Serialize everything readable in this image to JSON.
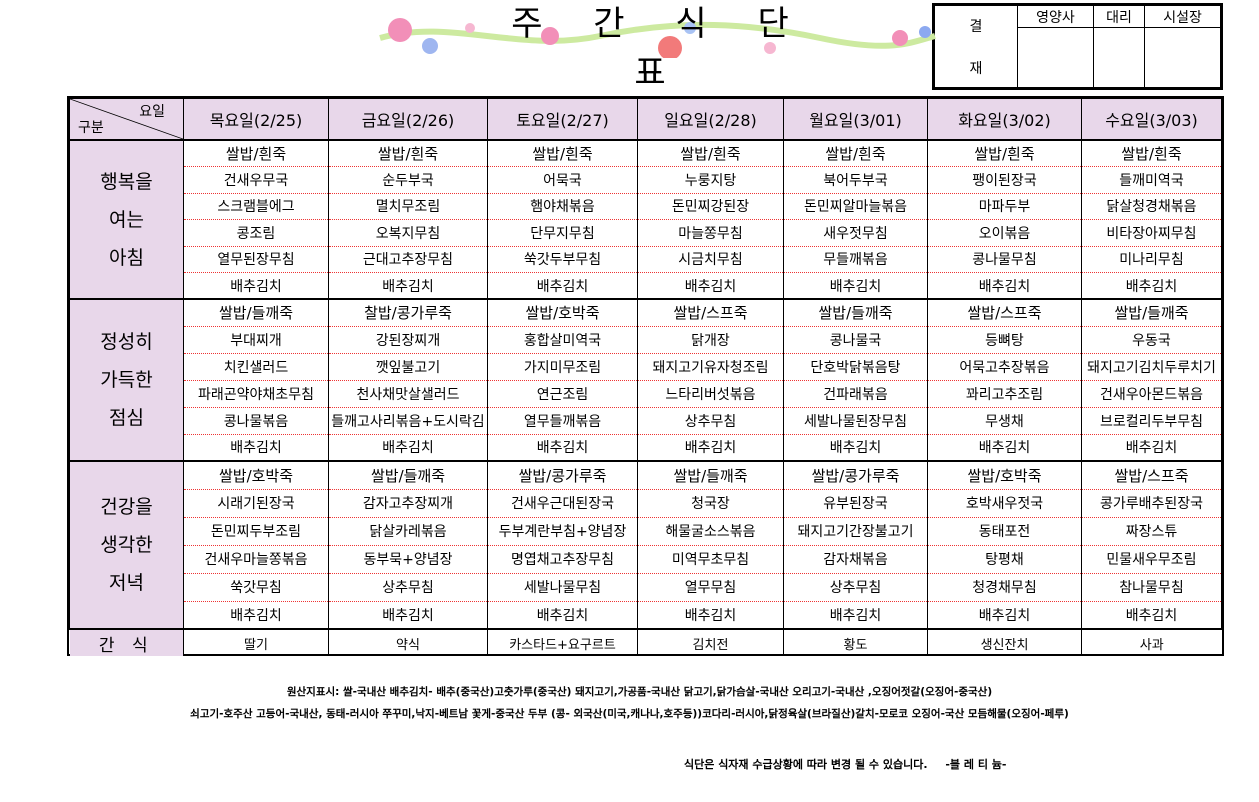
{
  "title": "주 간 식 단 표",
  "approval": {
    "label_top": "결",
    "label_bottom": "재",
    "columns": [
      "영양사",
      "대리",
      "시설장"
    ]
  },
  "header": {
    "corner_top": "요일",
    "corner_bottom": "구분",
    "days": [
      "목요일(2/25)",
      "금요일(2/26)",
      "토요일(2/27)",
      "일요일(2/28)",
      "월요일(3/01)",
      "화요일(3/02)",
      "수요일(3/03)"
    ]
  },
  "meals": [
    {
      "label": [
        "행복을",
        "여는",
        "아침"
      ],
      "rows": [
        [
          "쌀밥/흰죽",
          "쌀밥/흰죽",
          "쌀밥/흰죽",
          "쌀밥/흰죽",
          "쌀밥/흰죽",
          "쌀밥/흰죽",
          "쌀밥/흰죽"
        ],
        [
          "건새우무국",
          "순두부국",
          "어묵국",
          "누룽지탕",
          "북어두부국",
          "팽이된장국",
          "들깨미역국"
        ],
        [
          "스크램블에그",
          "멸치무조림",
          "햄야채볶음",
          "돈민찌강된장",
          "돈민찌알마늘볶음",
          "마파두부",
          "닭살청경채볶음"
        ],
        [
          "콩조림",
          "오복지무침",
          "단무지무침",
          "마늘쫑무침",
          "새우젓무침",
          "오이볶음",
          "비타장아찌무침"
        ],
        [
          "열무된장무침",
          "근대고추장무침",
          "쑥갓두부무침",
          "시금치무침",
          "무들깨볶음",
          "콩나물무침",
          "미나리무침"
        ],
        [
          "배추김치",
          "배추김치",
          "배추김치",
          "배추김치",
          "배추김치",
          "배추김치",
          "배추김치"
        ]
      ]
    },
    {
      "label": [
        "정성히",
        "가득한",
        "점심"
      ],
      "rows": [
        [
          "쌀밥/들깨죽",
          "찰밥/콩가루죽",
          "쌀밥/호박죽",
          "쌀밥/스프죽",
          "쌀밥/들깨죽",
          "쌀밥/스프죽",
          "쌀밥/들깨죽"
        ],
        [
          "부대찌개",
          "강된장찌개",
          "홍합살미역국",
          "닭개장",
          "콩나물국",
          "등뼈탕",
          "우동국"
        ],
        [
          "치킨샐러드",
          "깻잎불고기",
          "가지미무조림",
          "돼지고기유자청조림",
          "단호박닭볶음탕",
          "어묵고추장볶음",
          "돼지고기김치두루치기"
        ],
        [
          "파래곤약야채초무침",
          "천사채맛살샐러드",
          "연근조림",
          "느타리버섯볶음",
          "건파래볶음",
          "꽈리고추조림",
          "건새우아몬드볶음"
        ],
        [
          "콩나물볶음",
          "들깨고사리볶음+도시락김",
          "열무들깨볶음",
          "상추무침",
          "세발나물된장무침",
          "무생채",
          "브로컬리두부무침"
        ],
        [
          "배추김치",
          "배추김치",
          "배추김치",
          "배추김치",
          "배추김치",
          "배추김치",
          "배추김치"
        ]
      ]
    },
    {
      "label": [
        "건강을",
        "생각한",
        "저녁"
      ],
      "rows": [
        [
          "쌀밥/호박죽",
          "쌀밥/들깨죽",
          "쌀밥/콩가루죽",
          "쌀밥/들깨죽",
          "쌀밥/콩가루죽",
          "쌀밥/호박죽",
          "쌀밥/스프죽"
        ],
        [
          "시래기된장국",
          "감자고추장찌개",
          "건새우근대된장국",
          "청국장",
          "유부된장국",
          "호박새우젓국",
          "콩가루배추된장국"
        ],
        [
          "돈민찌두부조림",
          "닭살카레볶음",
          "두부계란부침+양념장",
          "해물굴소스볶음",
          "돼지고기간장불고기",
          "동태포전",
          "짜장스튜"
        ],
        [
          "건새우마늘쫑볶음",
          "동부묵+양념장",
          "명엽채고추장무침",
          "미역무초무침",
          "감자채볶음",
          "탕평채",
          "민물새우무조림"
        ],
        [
          "쑥갓무침",
          "상추무침",
          "세발나물무침",
          "열무무침",
          "상추무침",
          "청경채무침",
          "참나물무침"
        ],
        [
          "배추김치",
          "배추김치",
          "배추김치",
          "배추김치",
          "배추김치",
          "배추김치",
          "배추김치"
        ]
      ]
    }
  ],
  "snack": {
    "label": "간 식",
    "items": [
      "딸기",
      "약식",
      "카스타드+요구르트",
      "김치전",
      "황도",
      "생신잔치",
      "사과"
    ]
  },
  "footer": {
    "origin_line1": "원산지표시: 쌀-국내산   배추김치- 배추(중국산)고춧가루(중국산)  돼지고기,가공품-국내산 닭고기,닭가슴살-국내산  오리고기-국내산 ,오징어젓갈(오징어-중국산)",
    "origin_line2": "쇠고기-호주산 고등어-국내산, 동태-러시아   쭈꾸미,낙지-베트남   꽃게-중국산   두부 (콩- 외국산(미국,캐나나,호주등))코다리-러시아,닭정육살(브라질산)갈치-모로코 오징어-국산 모듬해물(오징어-페루)",
    "note": "식단은 식자재 수급상황에 따라 변경 될 수 있습니다.",
    "brand": "-블 레 티 늄-"
  },
  "colors": {
    "header_bg": "#e8d7ea",
    "separator": "#e33333"
  }
}
